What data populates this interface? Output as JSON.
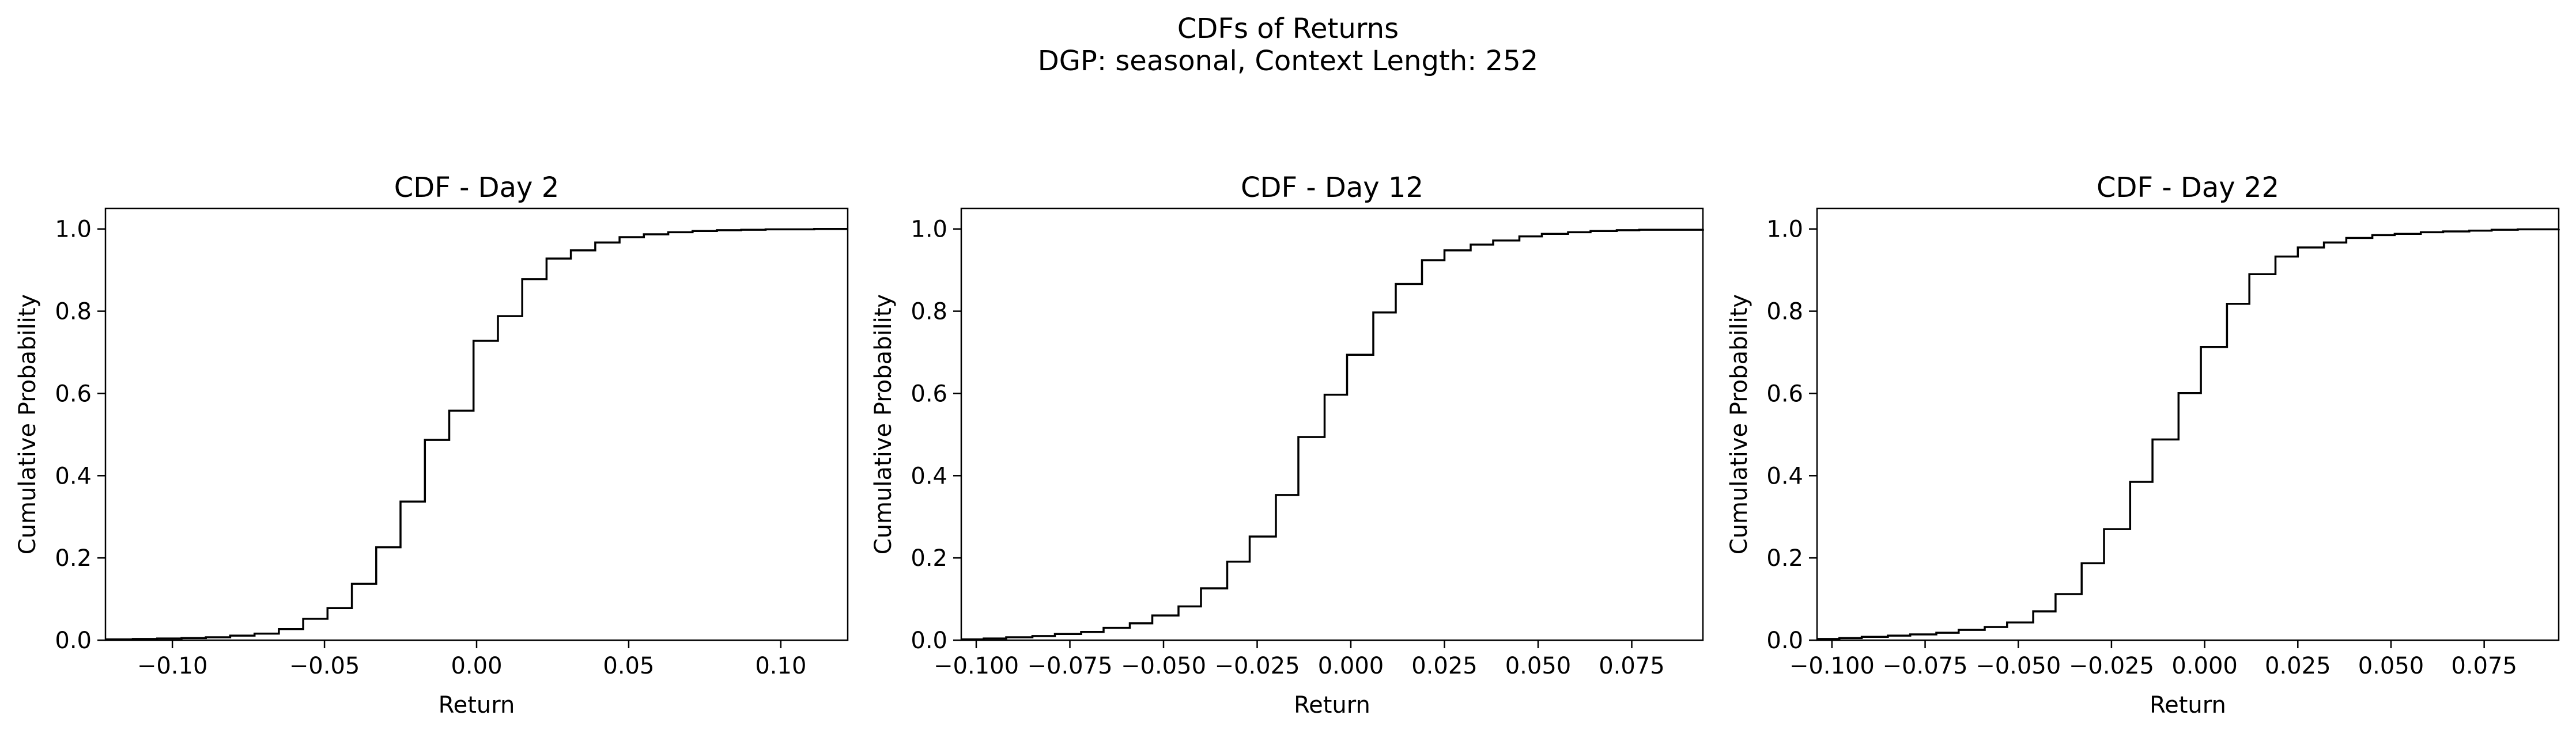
{
  "figure": {
    "title_line1": "CDFs of Returns",
    "title_line2": "DGP: seasonal, Context Length: 252"
  },
  "chart_data": [
    {
      "type": "line",
      "style": "step",
      "title": "CDF - Day 2",
      "xlabel": "Return",
      "ylabel": "Cumulative Probability",
      "xlim": [
        -0.122,
        0.122
      ],
      "ylim": [
        0.0,
        1.05
      ],
      "xticks": [
        -0.1,
        -0.05,
        0.0,
        0.05,
        0.1
      ],
      "xtick_labels": [
        "−0.10",
        "−0.05",
        "0.00",
        "0.05",
        "0.10"
      ],
      "yticks": [
        0.0,
        0.2,
        0.4,
        0.6,
        0.8,
        1.0
      ],
      "ytick_labels": [
        "0.0",
        "0.2",
        "0.4",
        "0.6",
        "0.8",
        "1.0"
      ],
      "grid": false,
      "x": [
        -0.122,
        -0.113,
        -0.105,
        -0.097,
        -0.089,
        -0.081,
        -0.073,
        -0.065,
        -0.057,
        -0.049,
        -0.041,
        -0.033,
        -0.025,
        -0.017,
        -0.009,
        -0.001,
        0.007,
        0.015,
        0.023,
        0.031,
        0.039,
        0.047,
        0.055,
        0.063,
        0.071,
        0.079,
        0.087,
        0.095,
        0.103,
        0.111,
        0.122
      ],
      "y": [
        0.002,
        0.003,
        0.004,
        0.005,
        0.007,
        0.011,
        0.016,
        0.027,
        0.052,
        0.078,
        0.137,
        0.226,
        0.337,
        0.487,
        0.558,
        0.728,
        0.788,
        0.878,
        0.928,
        0.948,
        0.967,
        0.98,
        0.987,
        0.992,
        0.995,
        0.997,
        0.998,
        0.999,
        0.999,
        1.0,
        1.0
      ]
    },
    {
      "type": "line",
      "style": "step",
      "title": "CDF - Day 12",
      "xlabel": "Return",
      "ylabel": "Cumulative Probability",
      "xlim": [
        -0.104,
        0.094
      ],
      "ylim": [
        0.0,
        1.05
      ],
      "xticks": [
        -0.1,
        -0.075,
        -0.05,
        -0.025,
        0.0,
        0.025,
        0.05,
        0.075
      ],
      "xtick_labels": [
        "−0.100",
        "−0.075",
        "−0.050",
        "−0.025",
        "0.000",
        "0.025",
        "0.050",
        "0.075"
      ],
      "yticks": [
        0.0,
        0.2,
        0.4,
        0.6,
        0.8,
        1.0
      ],
      "ytick_labels": [
        "0.0",
        "0.2",
        "0.4",
        "0.6",
        "0.8",
        "1.0"
      ],
      "grid": false,
      "x": [
        -0.104,
        -0.098,
        -0.092,
        -0.085,
        -0.079,
        -0.072,
        -0.066,
        -0.059,
        -0.053,
        -0.046,
        -0.04,
        -0.033,
        -0.027,
        -0.02,
        -0.014,
        -0.007,
        -0.001,
        0.006,
        0.012,
        0.019,
        0.025,
        0.032,
        0.038,
        0.045,
        0.051,
        0.058,
        0.064,
        0.071,
        0.077,
        0.094
      ],
      "y": [
        0.002,
        0.004,
        0.007,
        0.01,
        0.015,
        0.02,
        0.03,
        0.041,
        0.06,
        0.082,
        0.126,
        0.191,
        0.252,
        0.353,
        0.494,
        0.597,
        0.694,
        0.797,
        0.866,
        0.924,
        0.948,
        0.962,
        0.972,
        0.982,
        0.988,
        0.992,
        0.995,
        0.997,
        0.998,
        1.0
      ]
    },
    {
      "type": "line",
      "style": "step",
      "title": "CDF - Day 22",
      "xlabel": "Return",
      "ylabel": "Cumulative Probability",
      "xlim": [
        -0.104,
        0.095
      ],
      "ylim": [
        0.0,
        1.05
      ],
      "xticks": [
        -0.1,
        -0.075,
        -0.05,
        -0.025,
        0.0,
        0.025,
        0.05,
        0.075
      ],
      "xtick_labels": [
        "−0.100",
        "−0.075",
        "−0.050",
        "−0.025",
        "0.000",
        "0.025",
        "0.050",
        "0.075"
      ],
      "yticks": [
        0.0,
        0.2,
        0.4,
        0.6,
        0.8,
        1.0
      ],
      "ytick_labels": [
        "0.0",
        "0.2",
        "0.4",
        "0.6",
        "0.8",
        "1.0"
      ],
      "grid": false,
      "x": [
        -0.104,
        -0.098,
        -0.092,
        -0.085,
        -0.079,
        -0.072,
        -0.066,
        -0.059,
        -0.053,
        -0.046,
        -0.04,
        -0.033,
        -0.027,
        -0.02,
        -0.014,
        -0.007,
        -0.001,
        0.006,
        0.012,
        0.019,
        0.025,
        0.032,
        0.038,
        0.045,
        0.051,
        0.058,
        0.064,
        0.071,
        0.077,
        0.084,
        0.095
      ],
      "y": [
        0.003,
        0.005,
        0.008,
        0.011,
        0.014,
        0.018,
        0.025,
        0.032,
        0.043,
        0.07,
        0.112,
        0.187,
        0.27,
        0.385,
        0.488,
        0.601,
        0.713,
        0.818,
        0.89,
        0.933,
        0.955,
        0.967,
        0.978,
        0.985,
        0.988,
        0.992,
        0.994,
        0.996,
        0.998,
        0.999,
        1.0
      ]
    }
  ]
}
